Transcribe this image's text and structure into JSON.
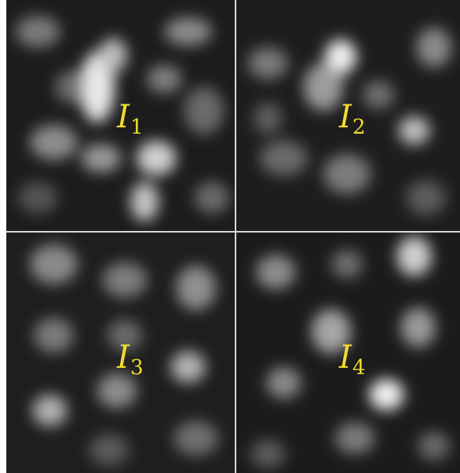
{
  "panels": [
    {
      "name": "I",
      "sub": "1"
    },
    {
      "name": "I",
      "sub": "2"
    },
    {
      "name": "I",
      "sub": "3"
    },
    {
      "name": "I",
      "sub": "4"
    }
  ],
  "colors": {
    "label": "#f2dc2c",
    "divider": "#d8d8d8",
    "background": "#1a1a1a"
  }
}
